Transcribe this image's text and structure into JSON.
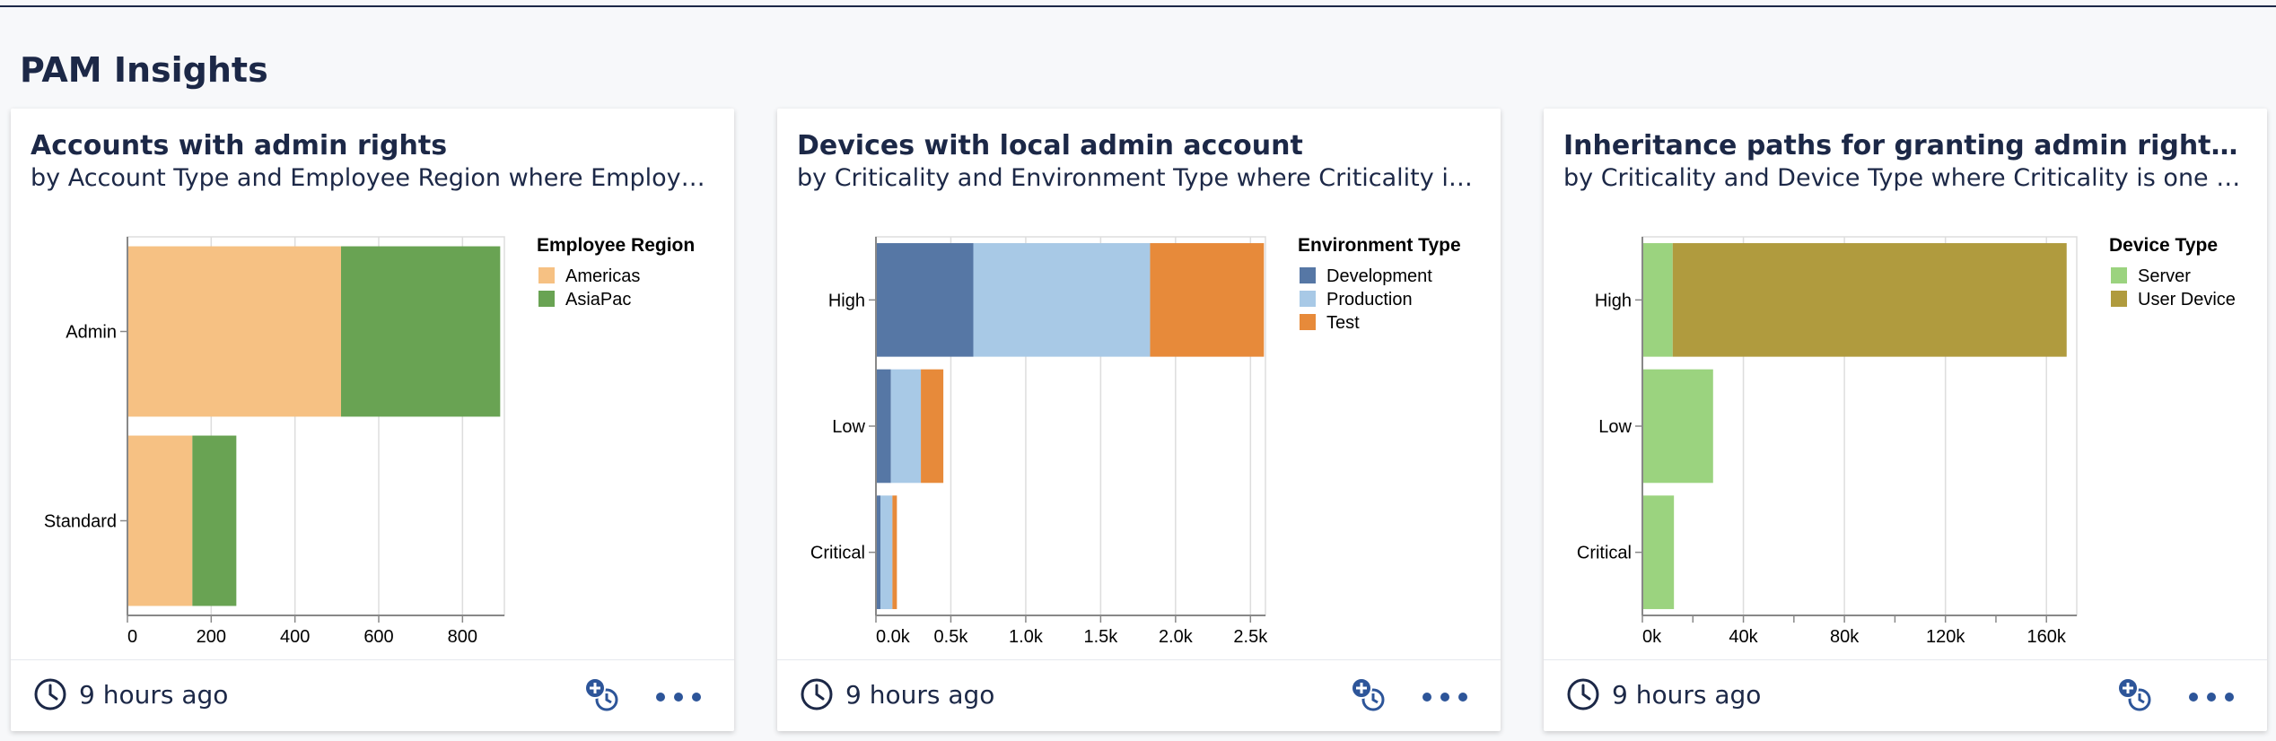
{
  "page": {
    "section_title": "PAM Insights"
  },
  "icons": {
    "clock": "clock-icon",
    "add_to_dashboard": "add-to-dashboard-icon",
    "more": "more-options-icon"
  },
  "cards": [
    {
      "title": "Accounts with admin rights",
      "subtitle": "by Account Type and Employee Region where Employee Region is one of ...",
      "updated": "9 hours ago",
      "chart_data": {
        "type": "bar",
        "orientation": "horizontal",
        "stacked": true,
        "categories": [
          "Admin",
          "Standard"
        ],
        "legend_title": "Employee Region",
        "legend_position": "right",
        "series": [
          {
            "name": "Americas",
            "color": "#f6c183",
            "values": [
              510,
              155
            ]
          },
          {
            "name": "AsiaPac",
            "color": "#69a353",
            "values": [
              380,
              105
            ]
          }
        ],
        "xlim": [
          0,
          900
        ],
        "xticks": [
          0,
          200,
          400,
          600,
          800
        ],
        "xtick_labels": [
          "0",
          "200",
          "400",
          "600",
          "800"
        ],
        "grid": true
      }
    },
    {
      "title": "Devices with local admin account",
      "subtitle": "by Criticality and Environment Type where Criticality is one of 'High', 'Low'",
      "updated": "9 hours ago",
      "chart_data": {
        "type": "bar",
        "orientation": "horizontal",
        "stacked": true,
        "categories": [
          "High",
          "Low",
          "Critical"
        ],
        "legend_title": "Environment Type",
        "legend_position": "right",
        "series": [
          {
            "name": "Development",
            "color": "#5677a5",
            "values": [
              650,
              100,
              30
            ]
          },
          {
            "name": "Production",
            "color": "#a8c9e6",
            "values": [
              1180,
              200,
              80
            ]
          },
          {
            "name": "Test",
            "color": "#e78a3a",
            "values": [
              760,
              150,
              30
            ]
          }
        ],
        "xlim": [
          0,
          2600
        ],
        "xticks": [
          0,
          500,
          1000,
          1500,
          2000,
          2500
        ],
        "xtick_labels": [
          "0.0k",
          "0.5k",
          "1.0k",
          "1.5k",
          "2.0k",
          "2.5k"
        ],
        "grid": true
      }
    },
    {
      "title": "Inheritance paths for granting admin rights to accounts",
      "subtitle": "by Criticality and Device Type where Criticality is one of 'High', 'Low'",
      "updated": "9 hours ago",
      "chart_data": {
        "type": "bar",
        "orientation": "horizontal",
        "stacked": true,
        "categories": [
          "High",
          "Low",
          "Critical"
        ],
        "legend_title": "Device Type",
        "legend_position": "right",
        "series": [
          {
            "name": "Server",
            "color": "#9bd37f",
            "values": [
              12000,
              28000,
              12500
            ]
          },
          {
            "name": "User Device",
            "color": "#b09b3e",
            "values": [
              156000,
              0,
              0
            ]
          }
        ],
        "xlim": [
          0,
          172000
        ],
        "xticks": [
          0,
          40000,
          80000,
          120000,
          160000
        ],
        "xtick_labels": [
          "0k",
          "40k",
          "80k",
          "120k",
          "160k"
        ],
        "minor_xticks": [
          20000,
          60000,
          100000,
          140000
        ],
        "grid": true
      }
    }
  ]
}
